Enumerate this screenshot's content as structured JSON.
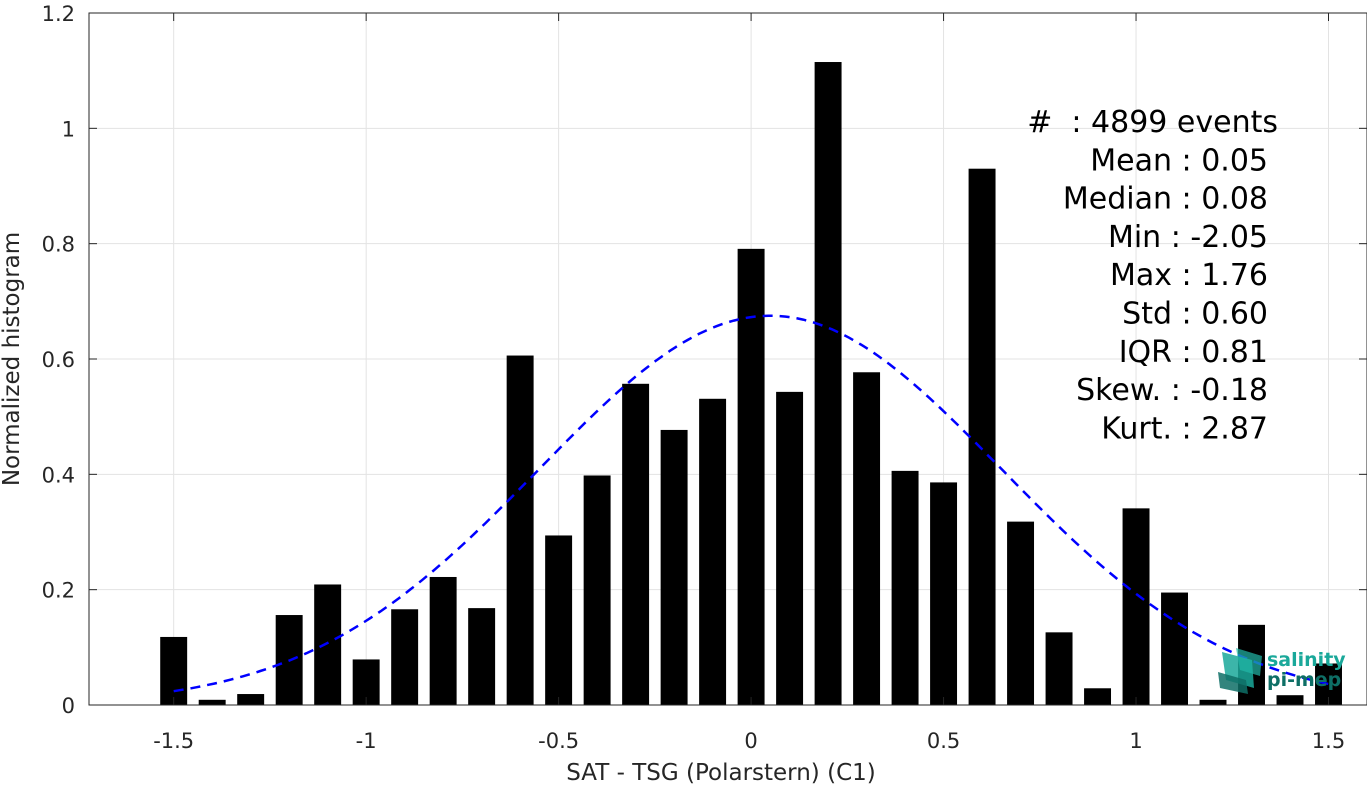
{
  "chart_data": {
    "type": "bar",
    "xlabel": "SAT - TSG (Polarstern) (C1)",
    "ylabel": "Normalized histogram",
    "xlim": [
      -1.72,
      1.6
    ],
    "ylim": [
      0,
      1.2
    ],
    "xticks": [
      -1.5,
      -1,
      -0.5,
      0,
      0.5,
      1,
      1.5
    ],
    "xtick_labels": [
      "-1.5",
      "-1",
      "-0.5",
      "0",
      "0.5",
      "1",
      "1.5"
    ],
    "yticks": [
      0,
      0.2,
      0.4,
      0.6,
      0.8,
      1,
      1.2
    ],
    "ytick_labels": [
      "0",
      "0.2",
      "0.4",
      "0.6",
      "0.8",
      "1",
      "1.2"
    ],
    "grid": true,
    "bar_color": "#000000",
    "bar_width": 0.07,
    "bins": [
      {
        "x": -1.5,
        "y": 0.118
      },
      {
        "x": -1.4,
        "y": 0.009
      },
      {
        "x": -1.3,
        "y": 0.019
      },
      {
        "x": -1.2,
        "y": 0.156
      },
      {
        "x": -1.1,
        "y": 0.209
      },
      {
        "x": -1.0,
        "y": 0.079
      },
      {
        "x": -0.9,
        "y": 0.166
      },
      {
        "x": -0.8,
        "y": 0.222
      },
      {
        "x": -0.7,
        "y": 0.168
      },
      {
        "x": -0.6,
        "y": 0.606
      },
      {
        "x": -0.5,
        "y": 0.294
      },
      {
        "x": -0.4,
        "y": 0.398
      },
      {
        "x": -0.3,
        "y": 0.557
      },
      {
        "x": -0.2,
        "y": 0.477
      },
      {
        "x": -0.1,
        "y": 0.531
      },
      {
        "x": 0.0,
        "y": 0.791
      },
      {
        "x": 0.1,
        "y": 0.543
      },
      {
        "x": 0.2,
        "y": 1.115
      },
      {
        "x": 0.3,
        "y": 0.577
      },
      {
        "x": 0.4,
        "y": 0.406
      },
      {
        "x": 0.5,
        "y": 0.386
      },
      {
        "x": 0.6,
        "y": 0.93
      },
      {
        "x": 0.7,
        "y": 0.318
      },
      {
        "x": 0.8,
        "y": 0.126
      },
      {
        "x": 0.9,
        "y": 0.029
      },
      {
        "x": 1.0,
        "y": 0.341
      },
      {
        "x": 1.1,
        "y": 0.195
      },
      {
        "x": 1.2,
        "y": 0.009
      },
      {
        "x": 1.3,
        "y": 0.139
      },
      {
        "x": 1.4,
        "y": 0.017
      },
      {
        "x": 1.5,
        "y": 0.072
      }
    ],
    "fit_curve": {
      "type": "gaussian",
      "mean": 0.05,
      "std": 0.6,
      "peak": 0.675,
      "x_range": [
        -1.5,
        1.5
      ],
      "color": "#0000ff",
      "style": "dashed"
    },
    "stats": [
      "#  : 4899 events",
      "Mean : 0.05",
      "Median : 0.08",
      "Min : -2.05",
      "Max : 1.76",
      "Std : 0.60",
      "IQR : 0.81",
      "Skew. : -0.18",
      "Kurt. : 2.87"
    ]
  },
  "logo": {
    "line1": "salinity",
    "line2": "pi-mep",
    "color": "#1aa89a",
    "dark_color": "#0e6f66"
  }
}
